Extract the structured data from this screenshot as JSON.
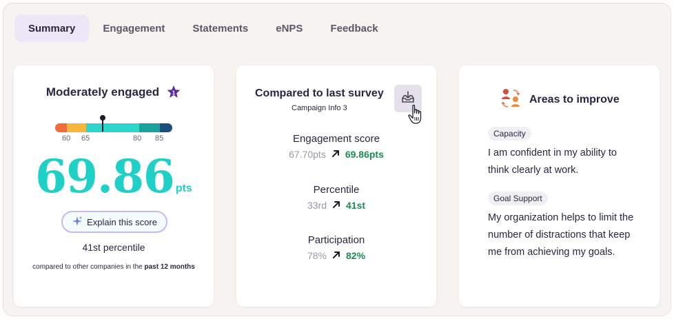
{
  "tabs": [
    {
      "label": "Summary",
      "active": true
    },
    {
      "label": "Engagement",
      "active": false
    },
    {
      "label": "Statements",
      "active": false
    },
    {
      "label": "eNPS",
      "active": false
    },
    {
      "label": "Feedback",
      "active": false
    }
  ],
  "engagement": {
    "title": "Moderately engaged",
    "badge_icon": "star-badge-icon",
    "gauge_ticks": [
      "60",
      "65",
      "80",
      "85"
    ],
    "gauge_colors": [
      "#f26b3a",
      "#f4b73c",
      "#2bd6cd",
      "#1aa39b",
      "#1c4f7a"
    ],
    "score": "69.86",
    "score_unit": "pts",
    "explain_label": "Explain this score",
    "percentile": "41st percentile",
    "compared_note_prefix": "compared to other companies in the ",
    "compared_note_bold": "past 12 months"
  },
  "comparison": {
    "title": "Compared to last survey",
    "subtitle": "Campaign Info 3",
    "metrics": [
      {
        "label": "Engagement score",
        "previous": "67.70pts",
        "current": "69.86pts"
      },
      {
        "label": "Percentile",
        "previous": "33rd",
        "current": "41st"
      },
      {
        "label": "Participation",
        "previous": "78%",
        "current": "82%"
      }
    ]
  },
  "improve": {
    "title": "Areas to improve",
    "items": [
      {
        "tag": "Capacity",
        "statement": "I am confident in my ability to think clearly at work."
      },
      {
        "tag": "Goal Support",
        "statement": "My organization helps to limit the number of distractions that keep me from achieving my goals."
      }
    ]
  },
  "colors": {
    "score_teal": "#1fd0c6",
    "up_green": "#1e8a56",
    "accent_purple": "#5b2a9e"
  }
}
